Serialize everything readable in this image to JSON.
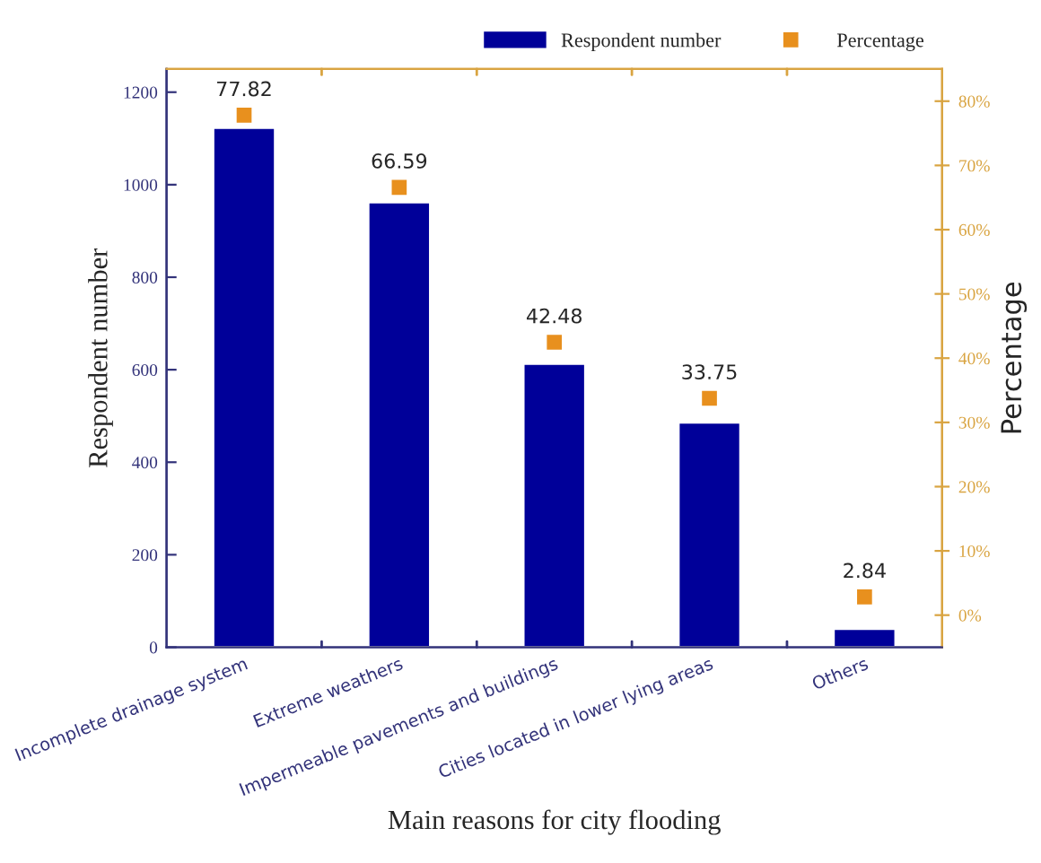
{
  "chart_data": {
    "type": "bar",
    "xlabel": "Main reasons for city flooding",
    "ylabel": "Respondent number",
    "y2label": "Percentage",
    "categories": [
      "Incomplete drainage system",
      "Extreme weathers",
      "Impermeable pavements and buildings",
      "Cities located in lower lying areas",
      "Others"
    ],
    "series": [
      {
        "name": "Respondent number",
        "color": "#000099",
        "values": [
          1123,
          962,
          613,
          486,
          40
        ]
      },
      {
        "name": "Percentage",
        "type": "scatter",
        "axis": "y2",
        "color": "#e8901e",
        "marker": "square",
        "values": [
          77.82,
          66.59,
          42.48,
          33.75,
          2.84
        ],
        "value_labels": [
          "77.82",
          "66.59",
          "42.48",
          "33.75",
          "2.84"
        ]
      }
    ],
    "ylim": [
      0,
      1250
    ],
    "yticks": [
      0,
      200,
      400,
      600,
      800,
      1000,
      1200
    ],
    "y2lim": [
      -5,
      85
    ],
    "y2ticks": [
      {
        "value": 0,
        "label": "0%"
      },
      {
        "value": 10,
        "label": "10%"
      },
      {
        "value": 20,
        "label": "20%"
      },
      {
        "value": 30,
        "label": "30%"
      },
      {
        "value": 40,
        "label": "40%"
      },
      {
        "value": 50,
        "label": "50%"
      },
      {
        "value": 60,
        "label": "60%"
      },
      {
        "value": 70,
        "label": "70%"
      },
      {
        "value": 80,
        "label": "80%"
      }
    ],
    "grid": false,
    "legend": "top right"
  }
}
